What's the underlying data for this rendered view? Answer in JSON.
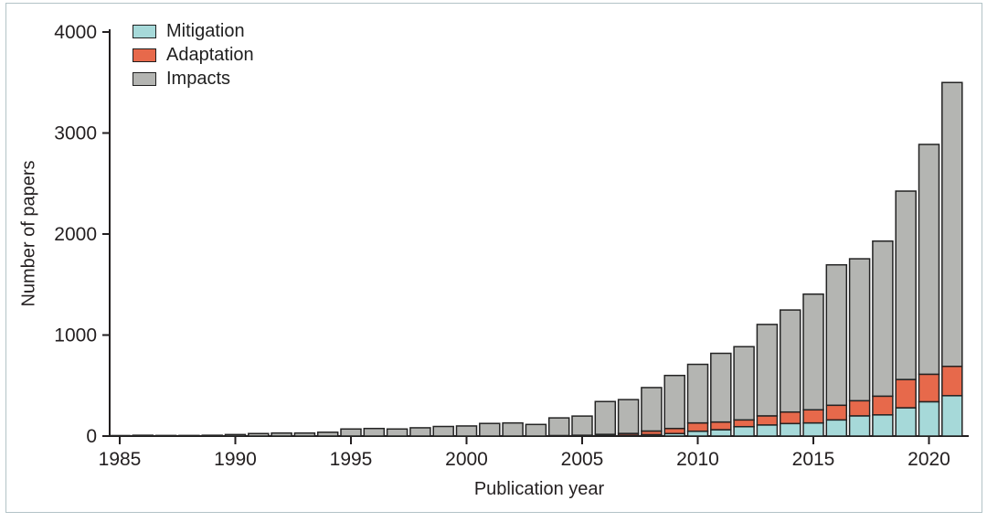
{
  "figure": {
    "xlabel": "Publication year",
    "ylabel": "Number of papers"
  },
  "chart_data": {
    "type": "bar",
    "stacked": true,
    "title": "",
    "xlabel": "Publication year",
    "ylabel": "Number of papers",
    "ylim": [
      0,
      4000
    ],
    "y_ticks": [
      0,
      1000,
      2000,
      3000,
      4000
    ],
    "x_tick_years": [
      1985,
      1990,
      1995,
      2000,
      2005,
      2010,
      2015,
      2020
    ],
    "grid": false,
    "legend_position": "upper-left",
    "years": [
      1985,
      1986,
      1987,
      1988,
      1989,
      1990,
      1991,
      1992,
      1993,
      1994,
      1995,
      1996,
      1997,
      1998,
      1999,
      2000,
      2001,
      2002,
      2003,
      2004,
      2005,
      2006,
      2007,
      2008,
      2009,
      2010,
      2011,
      2012,
      2013,
      2014,
      2015,
      2016,
      2017,
      2018,
      2019,
      2020,
      2021
    ],
    "series": [
      {
        "name": "Mitigation",
        "color": "#a6d9d9",
        "values": [
          0,
          0,
          0,
          0,
          0,
          0,
          0,
          0,
          0,
          0,
          0,
          0,
          0,
          0,
          0,
          0,
          0,
          0,
          0,
          0,
          0,
          5,
          8,
          14,
          25,
          48,
          63,
          93,
          110,
          124,
          130,
          160,
          200,
          210,
          280,
          340,
          400
        ]
      },
      {
        "name": "Adaptation",
        "color": "#e7694b",
        "values": [
          0,
          0,
          0,
          0,
          0,
          0,
          0,
          0,
          0,
          0,
          0,
          0,
          0,
          0,
          0,
          0,
          0,
          0,
          0,
          5,
          8,
          12,
          18,
          36,
          50,
          82,
          76,
          67,
          90,
          114,
          130,
          145,
          150,
          185,
          280,
          272,
          290
        ]
      },
      {
        "name": "Impacts",
        "color": "#b4b5b2",
        "values": [
          5,
          8,
          6,
          6,
          8,
          15,
          25,
          30,
          30,
          38,
          70,
          75,
          70,
          82,
          95,
          100,
          125,
          130,
          115,
          175,
          190,
          325,
          335,
          430,
          525,
          580,
          680,
          725,
          905,
          1010,
          1145,
          1390,
          1405,
          1535,
          1865,
          2275,
          2810
        ]
      }
    ],
    "bar_outline_color": "#232323",
    "axis_color": "#231f20"
  }
}
